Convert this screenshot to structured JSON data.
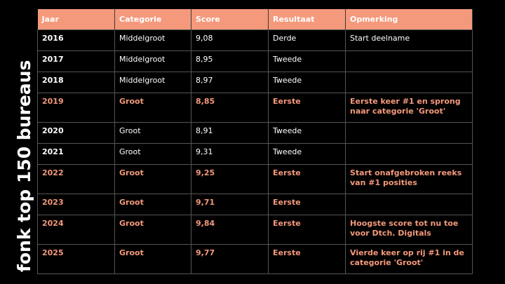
{
  "side_title": "fonk top 150 bureaus",
  "colors": {
    "accent": "#f4997b",
    "background": "#000000",
    "text": "#ffffff"
  },
  "table": {
    "headers": [
      "Jaar",
      "Categorie",
      "Score",
      "Resultaat",
      "Opmerking"
    ],
    "rows": [
      {
        "jaar": "2016",
        "categorie": "Middelgroot",
        "score": "9,08",
        "resultaat": "Derde",
        "opmerking": "Start deelname",
        "highlight": false
      },
      {
        "jaar": "2017",
        "categorie": "Middelgroot",
        "score": "8,95",
        "resultaat": "Tweede",
        "opmerking": "",
        "highlight": false
      },
      {
        "jaar": "2018",
        "categorie": "Middelgroot",
        "score": "8,97",
        "resultaat": "Tweede",
        "opmerking": "",
        "highlight": false
      },
      {
        "jaar": "2019",
        "categorie": "Groot",
        "score": "8,85",
        "resultaat": "Eerste",
        "opmerking": "Eerste keer #1 en sprong naar categorie 'Groot'",
        "highlight": true
      },
      {
        "jaar": "2020",
        "categorie": "Groot",
        "score": "8,91",
        "resultaat": "Tweede",
        "opmerking": "",
        "highlight": false
      },
      {
        "jaar": "2021",
        "categorie": "Groot",
        "score": "9,31",
        "resultaat": "Tweede",
        "opmerking": "",
        "highlight": false
      },
      {
        "jaar": "2022",
        "categorie": "Groot",
        "score": "9,25",
        "resultaat": "Eerste",
        "opmerking": "Start onafgebroken reeks van #1 posities",
        "highlight": true
      },
      {
        "jaar": "2023",
        "categorie": "Groot",
        "score": "9,71",
        "resultaat": "Eerste",
        "opmerking": "",
        "highlight": true
      },
      {
        "jaar": "2024",
        "categorie": "Groot",
        "score": "9,84",
        "resultaat": "Eerste",
        "opmerking": "Hoogste score tot nu toe voor Dtch. Digitals",
        "highlight": true
      },
      {
        "jaar": "2025",
        "categorie": "Groot",
        "score": "9,77",
        "resultaat": "Eerste",
        "opmerking": "Vierde keer op rij #1 in de categorie 'Groot'",
        "highlight": true
      }
    ]
  }
}
